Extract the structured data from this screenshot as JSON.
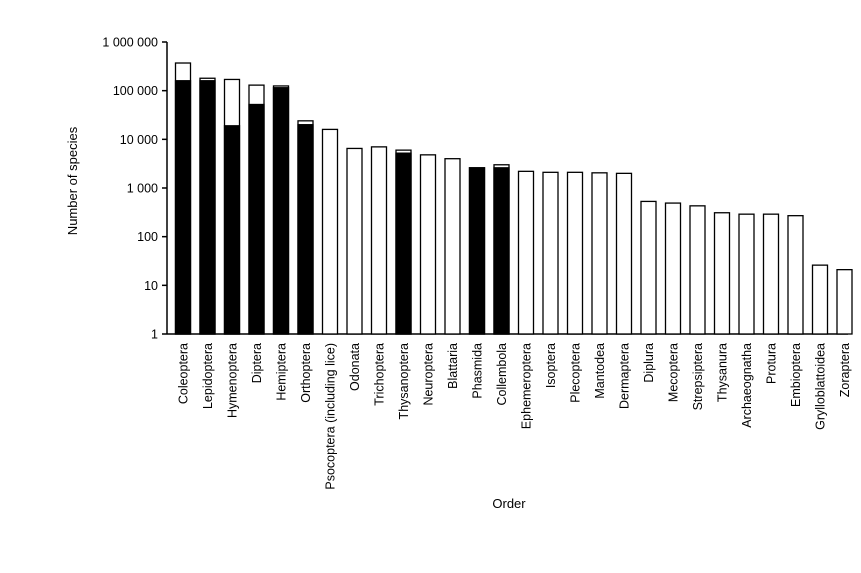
{
  "chart_data": {
    "type": "bar",
    "xlabel": "Order",
    "ylabel": "Number of species",
    "yscale": "log",
    "ylim": [
      1,
      1000000
    ],
    "yticks": [
      {
        "value": 1,
        "label": "1"
      },
      {
        "value": 10,
        "label": "10"
      },
      {
        "value": 100,
        "label": "100"
      },
      {
        "value": 1000,
        "label": "1 000"
      },
      {
        "value": 10000,
        "label": "10 000"
      },
      {
        "value": 100000,
        "label": "100 000"
      },
      {
        "value": 1000000,
        "label": "1 000 000"
      }
    ],
    "grid": false,
    "legend": "none",
    "colors": {
      "filled": "#000000",
      "outline": "#000000",
      "open": "#ffffff"
    },
    "categories": [
      "Coleoptera",
      "Lepidoptera",
      "Hymenoptera",
      "Diptera",
      "Hemiptera",
      "Orthoptera",
      "Psocoptera (including lice)",
      "Odonata",
      "Trichoptera",
      "Thysanoptera",
      "Neuroptera",
      "Blattaria",
      "Phasmida",
      "Collembola",
      "Ephemeroptera",
      "Isoptera",
      "Plecoptera",
      "Mantodea",
      "Dermaptera",
      "Diplura",
      "Mecoptera",
      "Strepsiptera",
      "Thysanura",
      "Archaeognatha",
      "Protura",
      "Embioptera",
      "Grylloblattoidea",
      "Zoraptera"
    ],
    "series": [
      {
        "values": [
          370000,
          180000,
          170000,
          130000,
          125000,
          24000,
          16000,
          6500,
          7000,
          6000,
          4800,
          4000,
          2600,
          3000,
          2200,
          2100,
          2100,
          2050,
          2000,
          530,
          490,
          430,
          310,
          290,
          290,
          270,
          26,
          21
        ]
      },
      {
        "values": [
          160000,
          160000,
          19000,
          52000,
          115000,
          20000,
          0,
          0,
          0,
          5200,
          0,
          0,
          2600,
          2600,
          0,
          0,
          0,
          0,
          0,
          0,
          0,
          0,
          0,
          0,
          0,
          0,
          0,
          0
        ]
      }
    ]
  }
}
